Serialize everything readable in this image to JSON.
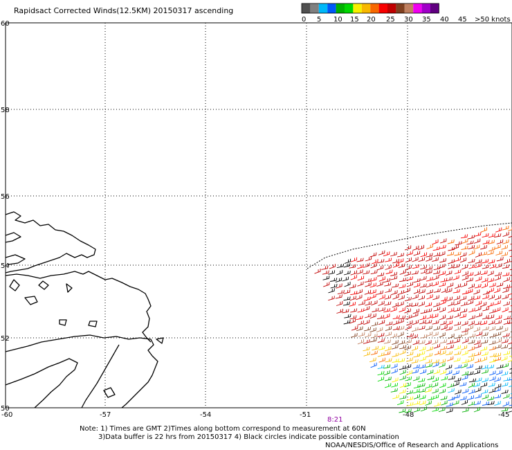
{
  "title": "Rapidsact Corrected Winds(12.5KM) 20150317 ascending",
  "legend": {
    "colors": [
      "#505050",
      "#808080",
      "#00b8f8",
      "#0058f8",
      "#00b000",
      "#00d800",
      "#f8f000",
      "#f8b800",
      "#f86800",
      "#f80000",
      "#c00000",
      "#804020",
      "#c08060",
      "#f000f0",
      "#a000c8",
      "#600080"
    ],
    "labels": [
      "0",
      "5",
      "10",
      "15",
      "20",
      "25",
      "30",
      "35",
      "40",
      "45",
      ">50 knots"
    ]
  },
  "axes": {
    "lon_ticks": [
      "-60",
      "-57",
      "-54",
      "-51",
      "-48",
      "-45"
    ],
    "lat_ticks": [
      "60",
      "58",
      "56",
      "54",
      "52",
      "50"
    ]
  },
  "pass_time": "8:21",
  "notes": {
    "line1": "Note: 1) Times are GMT 2)Times along bottom correspond to measurement at 60N",
    "line2": "3)Data buffer is 22 hrs from 20150317 4) Black circles indicate possible contamination",
    "credit": "NOAA/NESDIS/Office of Research and Applications"
  }
}
